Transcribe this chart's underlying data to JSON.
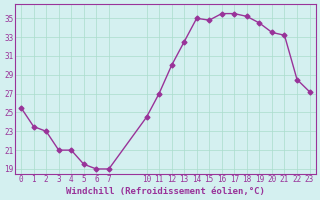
{
  "x_values": [
    0,
    1,
    2,
    3,
    4,
    5,
    6,
    7,
    10,
    11,
    12,
    13,
    14,
    15,
    16,
    17,
    18,
    19,
    20,
    21,
    22,
    23
  ],
  "y_values": [
    25.5,
    23.5,
    23.0,
    21.0,
    21.0,
    19.5,
    19.0,
    19.0,
    24.5,
    27.0,
    30.0,
    32.5,
    35.0,
    34.8,
    35.5,
    35.5,
    35.2,
    34.5,
    33.5,
    33.2,
    28.5,
    27.2
  ],
  "x_ticks": [
    0,
    1,
    2,
    3,
    4,
    5,
    6,
    7,
    10,
    11,
    12,
    13,
    14,
    15,
    16,
    17,
    18,
    19,
    20,
    21,
    22,
    23
  ],
  "y_ticks": [
    19,
    21,
    23,
    25,
    27,
    29,
    31,
    33,
    35
  ],
  "ylim": [
    18.5,
    36.5
  ],
  "xlim": [
    -0.5,
    23.5
  ],
  "line_color": "#993399",
  "marker_color": "#993399",
  "bg_color": "#d4f0f0",
  "grid_color": "#aaddcc",
  "xlabel": "Windchill (Refroidissement éolien,°C)",
  "xlabel_color": "#993399",
  "tick_color": "#993399",
  "font_family": "monospace"
}
